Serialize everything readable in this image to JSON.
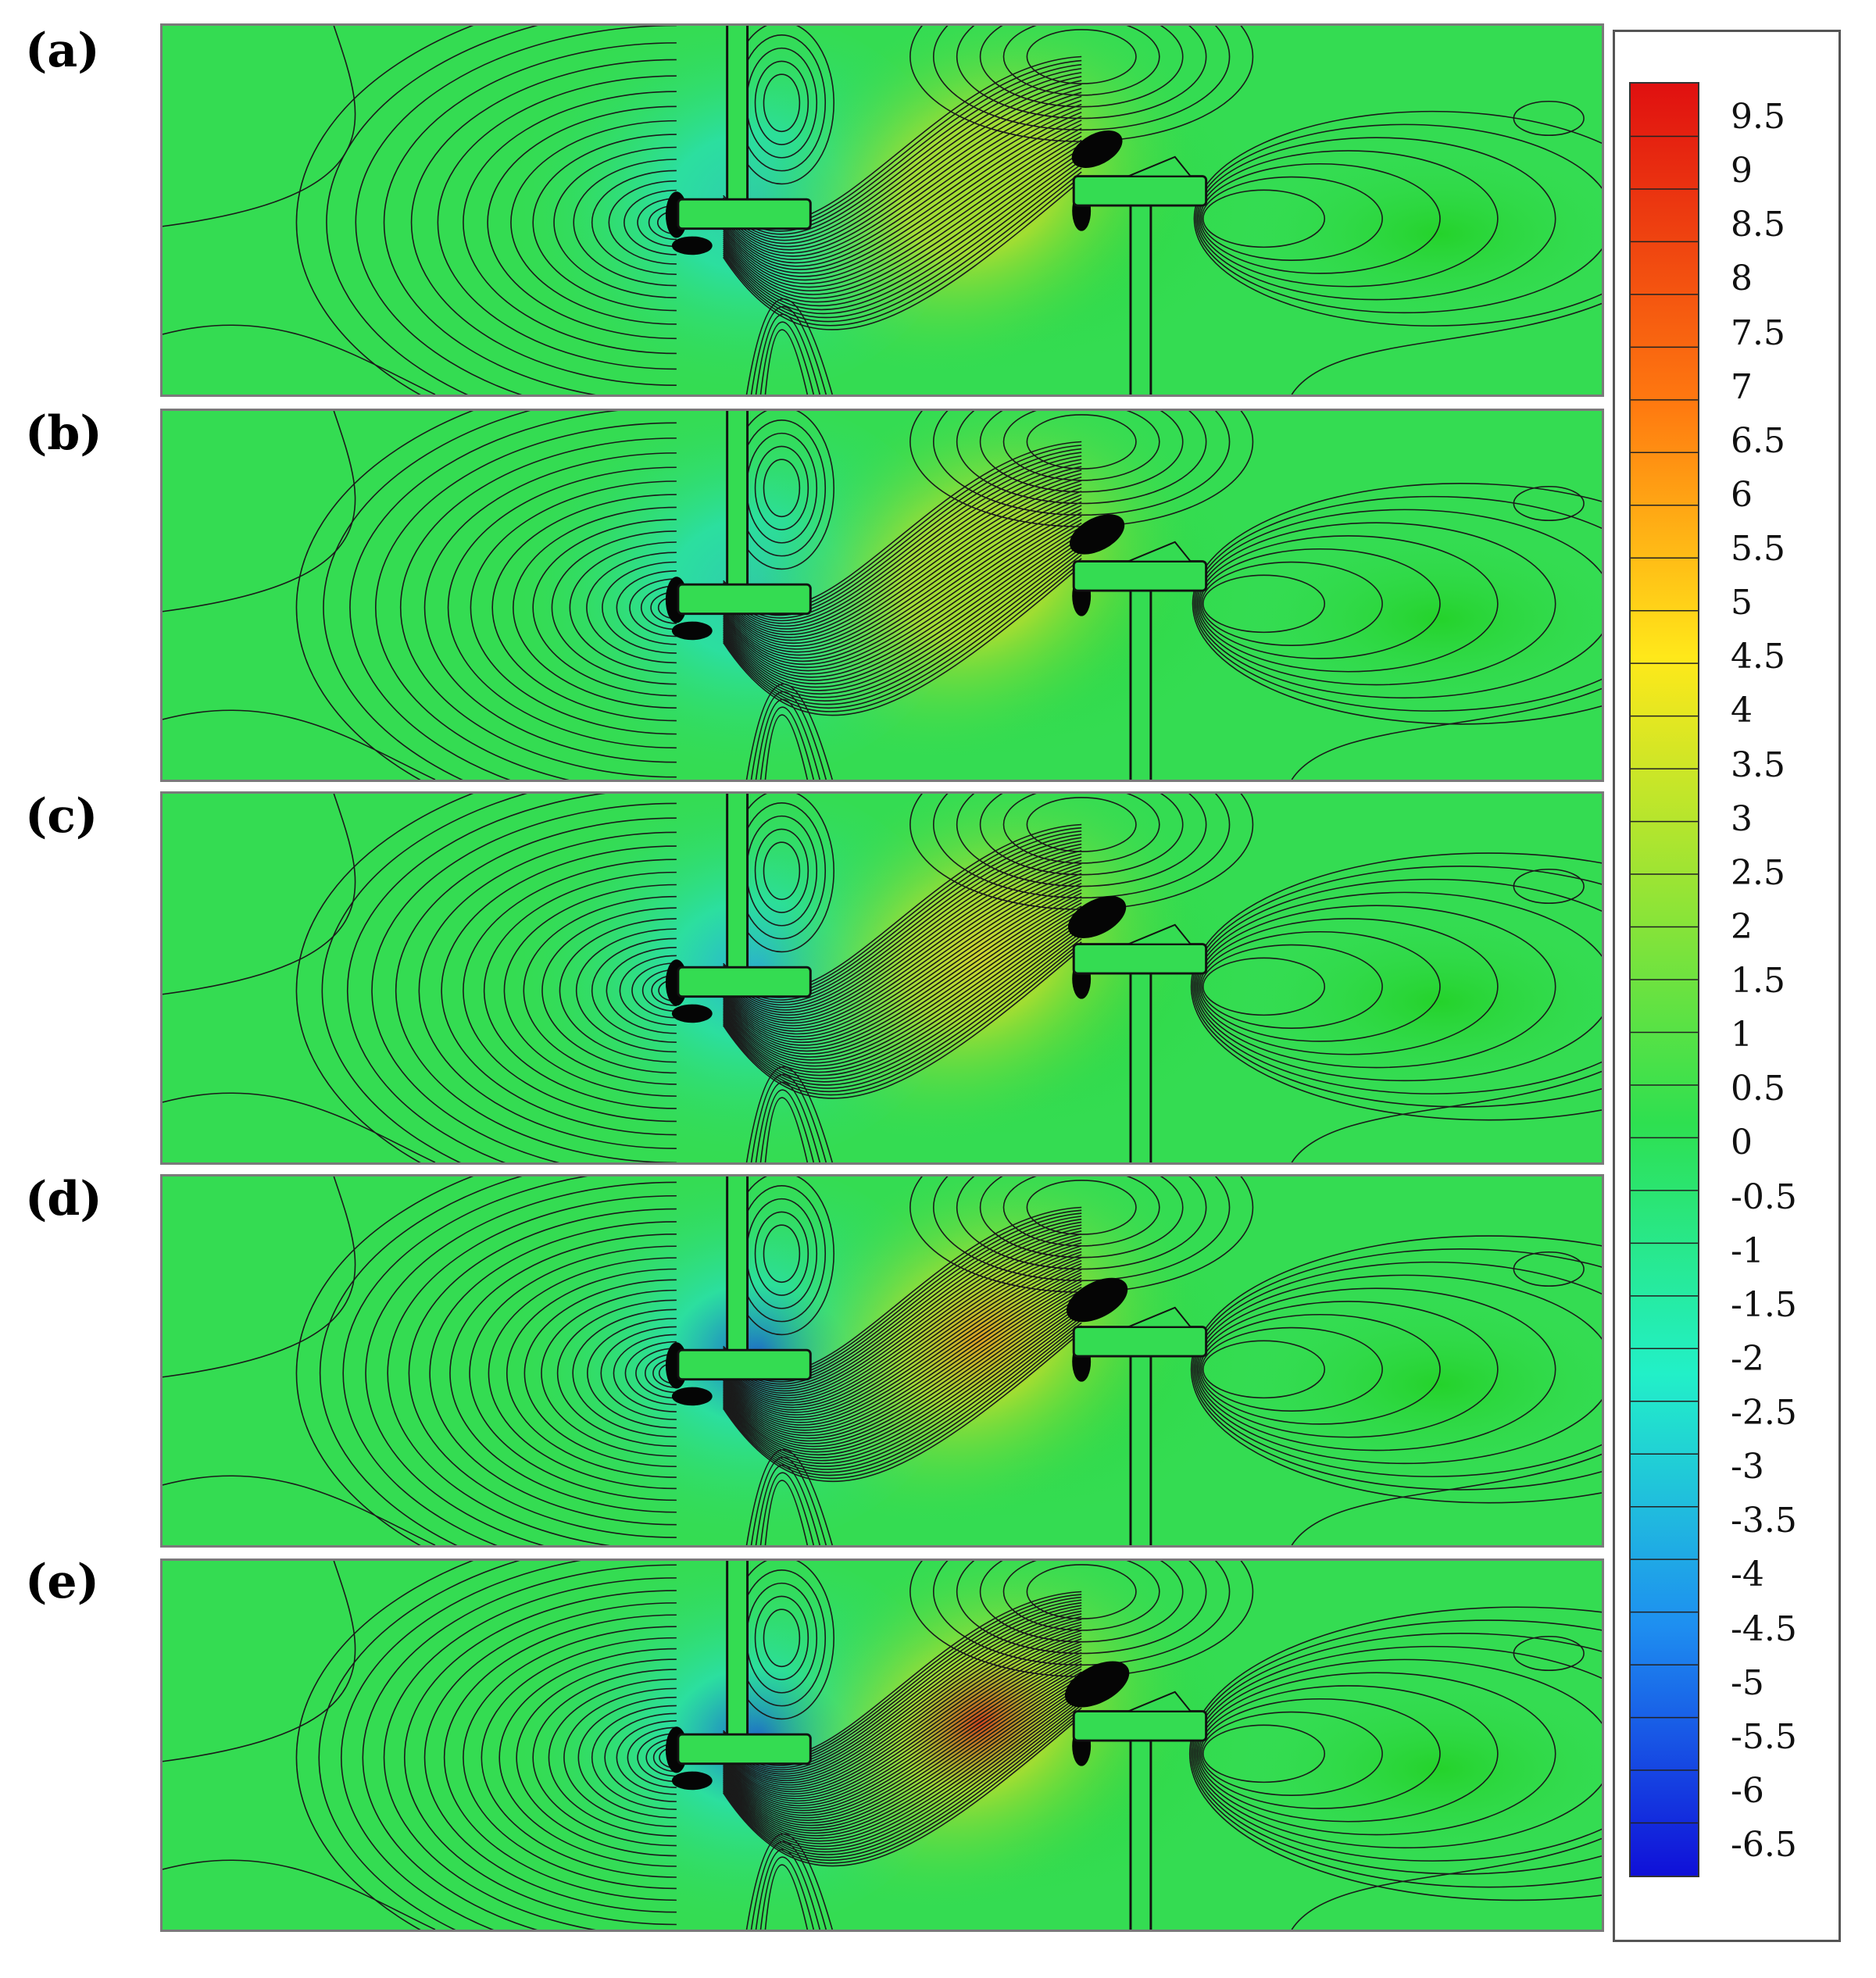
{
  "figure": {
    "panels": [
      {
        "label": "(a)"
      },
      {
        "label": "(b)"
      },
      {
        "label": "(c)"
      },
      {
        "label": "(d)"
      },
      {
        "label": "(e)"
      }
    ],
    "colorbar": {
      "ticks": [
        "9.5",
        "9",
        "8.5",
        "8",
        "7.5",
        "7",
        "6.5",
        "6",
        "5.5",
        "5",
        "4.5",
        "4",
        "3.5",
        "3",
        "2.5",
        "2",
        "1.5",
        "1",
        "0.5",
        "0",
        "-0.5",
        "-1",
        "-1.5",
        "-2",
        "-2.5",
        "-3",
        "-3.5",
        "-4",
        "-4.5",
        "-5",
        "-5.5",
        "-6",
        "-6.5"
      ],
      "min": -6.5,
      "max": 9.5,
      "colors": {
        "high": "#e01010",
        "upper": "#ff7a10",
        "mid_high": "#ffe81a",
        "mid": "#2ee050",
        "mid_low": "#22f0c8",
        "low": "#1e8ff0",
        "lowest": "#1010d8"
      }
    }
  }
}
